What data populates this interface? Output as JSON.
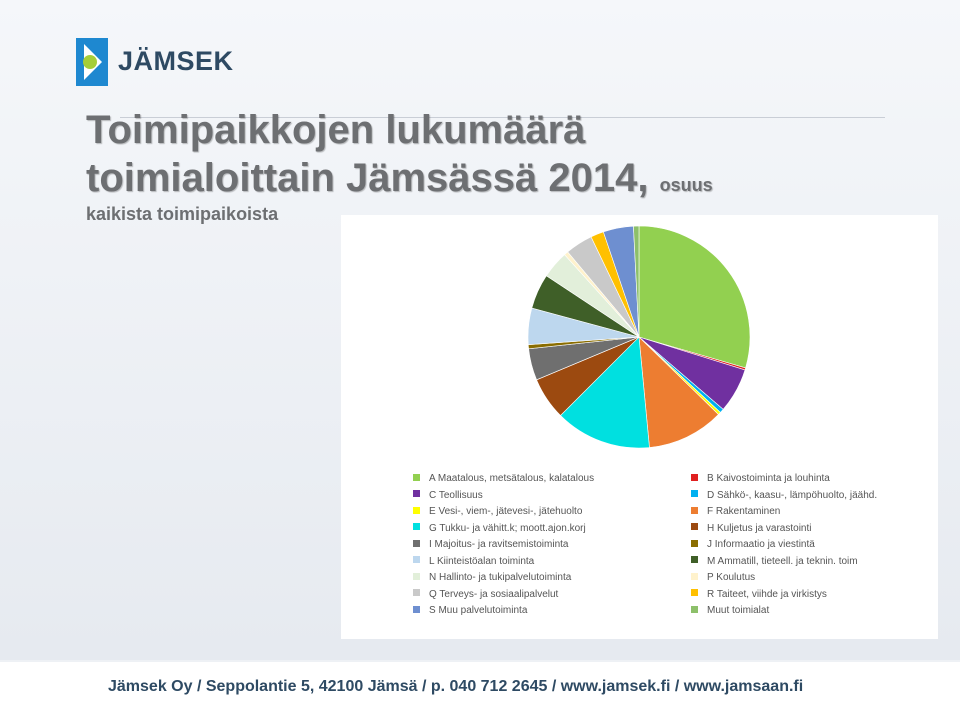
{
  "brand": {
    "name": "JÄMSEK"
  },
  "slide": {
    "title_line1": "Toimipaikkojen lukumäärä",
    "title_line2": "toimialoittain Jämsässä 2014,",
    "title_suffix": "osuus",
    "subtitle": "kaikista toimipaikoista"
  },
  "footer": {
    "text": "Jämsek Oy  /  Seppolantie 5, 42100 Jämsä  /  p. 040 712 2645  /  www.jamsek.fi  /  www.jamsaan.fi"
  },
  "chart_data": {
    "type": "pie",
    "title": "",
    "legend_position": "bottom",
    "slices": [
      {
        "label": "A    Maatalous, metsätalous, kalatalous",
        "value": 29.5,
        "color": "#92d050"
      },
      {
        "label": "B    Kaivostoiminta ja louhinta",
        "value": 0.3,
        "color": "#e02020"
      },
      {
        "label": "C    Teollisuus",
        "value": 6.5,
        "color": "#7030a0"
      },
      {
        "label": "D    Sähkö-, kaasu-, lämpöhuolto, jäähd.",
        "value": 0.6,
        "color": "#00b0f0"
      },
      {
        "label": "E    Vesi-, viem-, jätevesi-, jätehuolto",
        "value": 0.4,
        "color": "#ffff00"
      },
      {
        "label": "F    Rakentaminen",
        "value": 11.2,
        "color": "#ed7d31"
      },
      {
        "label": "G    Tukku- ja vähitt.k; moott.ajon.korj",
        "value": 14.0,
        "color": "#00e0e0"
      },
      {
        "label": "H    Kuljetus ja varastointi",
        "value": 6.2,
        "color": "#9c4a10"
      },
      {
        "label": "I    Majoitus- ja ravitsemistoiminta",
        "value": 4.6,
        "color": "#6f6f6f"
      },
      {
        "label": "J    Informaatio ja viestintä",
        "value": 0.6,
        "color": "#8a6d00"
      },
      {
        "label": "L    Kiinteistöalan toiminta",
        "value": 5.3,
        "color": "#bdd7ee"
      },
      {
        "label": "M    Ammatill, tieteell. ja teknin. toim",
        "value": 5.1,
        "color": "#3f5f28"
      },
      {
        "label": "N    Hallinto- ja tukipalvelutoiminta",
        "value": 4.0,
        "color": "#e2efda"
      },
      {
        "label": "P    Koulutus",
        "value": 0.6,
        "color": "#fff2cc"
      },
      {
        "label": "Q    Terveys- ja sosiaalipalvelut",
        "value": 4.0,
        "color": "#c9c9c9"
      },
      {
        "label": "R    Taiteet, viihde ja virkistys",
        "value": 1.9,
        "color": "#ffc000"
      },
      {
        "label": "S    Muu palvelutoiminta",
        "value": 4.4,
        "color": "#6e8fd0"
      },
      {
        "label": "Muut toimialat",
        "value": 0.8,
        "color": "#8dc06a"
      }
    ]
  }
}
